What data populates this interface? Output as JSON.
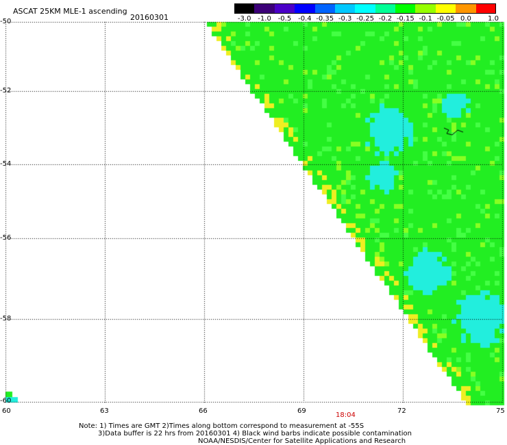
{
  "header": {
    "product": "ASCAT 25KM MLE-1 ascending",
    "date": "20160301"
  },
  "colorbar": {
    "labels": [
      "-3.0",
      "-1.0",
      "-0.5",
      "-0.4",
      "-0.35",
      "-0.3",
      "-0.25",
      "-0.2",
      "-0.15",
      "-0.1",
      "-0.05",
      "0.0",
      "1.0"
    ],
    "colors": [
      "#000000",
      "#3c0078",
      "#4b00c8",
      "#0000ff",
      "#0064ff",
      "#00c8ff",
      "#00ffff",
      "#00ff96",
      "#00ff00",
      "#96ff00",
      "#ffff00",
      "#ff9600",
      "#ff0000"
    ]
  },
  "map": {
    "lat_labels": [
      "-50",
      "-52",
      "-54",
      "-56",
      "-58",
      "-60"
    ],
    "lon_labels": [
      "60",
      "63",
      "66",
      "69",
      "72",
      "75"
    ],
    "lat_values": [
      -50,
      -52,
      -54,
      -56,
      -58,
      -60
    ],
    "lon_values": [
      60,
      63,
      66,
      69,
      72,
      75
    ],
    "pass_time": "18:04",
    "pass_time_color": "#cc0000",
    "colors": {
      "grid": "#000000",
      "background": "#ffffff",
      "field_green": "#22ee22",
      "field_cyan": "#22eedd",
      "field_yellow": "#eeee22",
      "field_orange": "#ff9900"
    }
  },
  "footer": {
    "line1": "Note: 1) Times are GMT 2)Times along bottom correspond to measurement at -55S",
    "line2": "3)Data buffer is 22 hrs from 20160301 4) Black wind barbs indicate possible contamination",
    "line3": "NOAA/NESDIS/Center for Satellite Applications and Research"
  }
}
